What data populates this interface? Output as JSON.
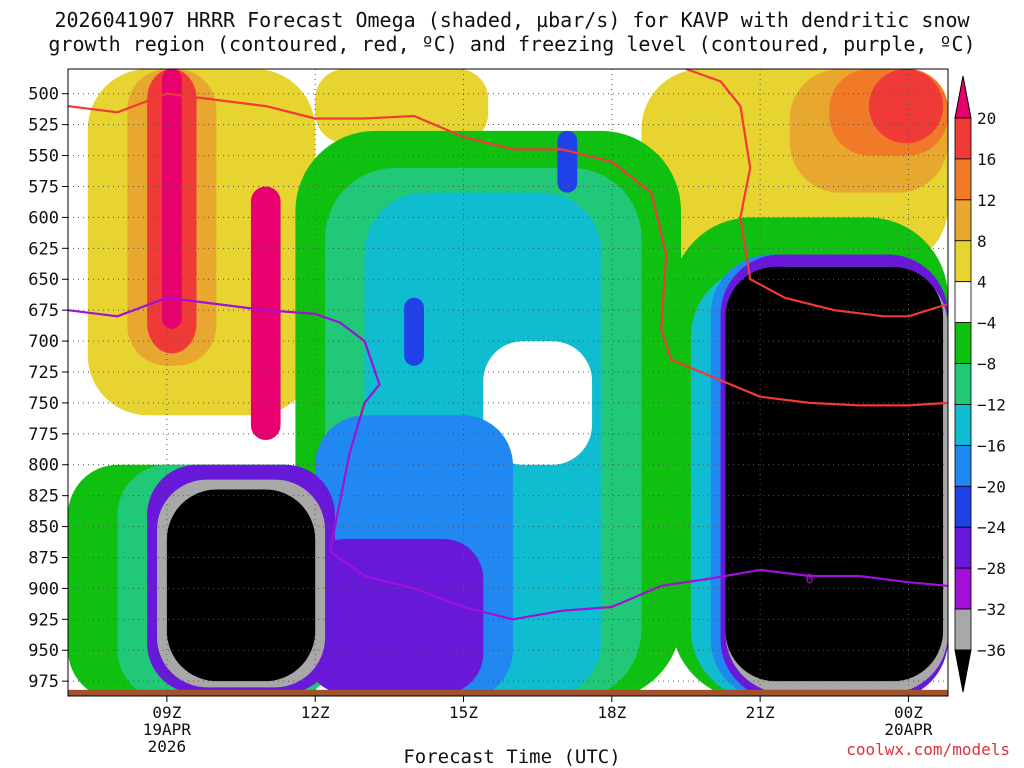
{
  "title": {
    "line1": "2026041907 HRRR Forecast Omega (shaded, µbar/s) for KAVP with dendritic snow",
    "line2": "growth region (contoured, red, ºC) and freezing level (contoured, purple, ºC)"
  },
  "credit": "coolwx.com/models",
  "chart_data": {
    "type": "heatmap",
    "title": "2026041907 HRRR Forecast Omega (shaded, µbar/s) for KAVP with dendritic snow growth region (contoured, red, ºC) and freezing level (contoured, purple, ºC)",
    "xlabel": "Forecast Time (UTC)",
    "ylabel": "",
    "xlim": [
      7.0,
      24.8
    ],
    "ylim": [
      480,
      987
    ],
    "y_inverted": true,
    "x_ticks": [
      {
        "value": 9,
        "lines": [
          "09Z",
          "19APR",
          "2026"
        ]
      },
      {
        "value": 12,
        "lines": [
          "12Z"
        ]
      },
      {
        "value": 15,
        "lines": [
          "15Z"
        ]
      },
      {
        "value": 18,
        "lines": [
          "18Z"
        ]
      },
      {
        "value": 21,
        "lines": [
          "21Z"
        ]
      },
      {
        "value": 24,
        "lines": [
          "00Z",
          "20APR"
        ]
      }
    ],
    "y_ticks": [
      500,
      525,
      550,
      575,
      600,
      625,
      650,
      675,
      700,
      725,
      750,
      775,
      800,
      825,
      850,
      875,
      900,
      925,
      950,
      975
    ],
    "colorbar": {
      "labels": [
        "20",
        "16",
        "12",
        "8",
        "4",
        "−4",
        "−8",
        "−12",
        "−16",
        "−20",
        "−24",
        "−28",
        "−32",
        "−36"
      ],
      "colors": [
        "#e8006f",
        "#f03a38",
        "#f07a28",
        "#e8a830",
        "#e8d430",
        "#ffffff",
        "#10c010",
        "#20c878",
        "#10bcd0",
        "#2088f0",
        "#2040e8",
        "#6818d8",
        "#a010d8",
        "#a8a8a8",
        "#000000"
      ],
      "bounds": [
        20,
        16,
        12,
        8,
        4,
        -4,
        -8,
        -12,
        -16,
        -20,
        -24,
        -28,
        -32,
        -36
      ]
    },
    "omega_regions": [
      {
        "name": "strong-rising-pocket-morning",
        "level": -36,
        "color": "#000000",
        "t": [
          9.0,
          12.0
        ],
        "p": [
          820,
          975
        ]
      },
      {
        "name": "strong-rising-pocket-evening",
        "level": -36,
        "color": "#000000",
        "t": [
          20.3,
          24.7
        ],
        "p": [
          640,
          975
        ]
      },
      {
        "name": "sinking-core-early",
        "level": 20,
        "color": "#e8006f",
        "t": [
          8.9,
          9.3
        ],
        "p": [
          480,
          690
        ]
      },
      {
        "name": "sinking-core-late-morning",
        "level": 20,
        "color": "#e8006f",
        "t": [
          10.7,
          11.3
        ],
        "p": [
          575,
          780
        ]
      },
      {
        "name": "sinking-core-evening",
        "level": 16,
        "color": "#f03a38",
        "t": [
          23.2,
          24.7
        ],
        "p": [
          480,
          540
        ]
      },
      {
        "name": "rising-core-1430",
        "level": -24,
        "color": "#2040e8",
        "t": [
          13.8,
          14.2
        ],
        "p": [
          665,
          720
        ]
      },
      {
        "name": "rising-core-1630",
        "level": -24,
        "color": "#2040e8",
        "t": [
          16.9,
          17.3
        ],
        "p": [
          530,
          580
        ]
      }
    ],
    "series": [
      {
        "name": "Dendritic snow growth region",
        "color": "#f03a38",
        "t": [
          7.0,
          8.0,
          9.0,
          10.0,
          11.0,
          12.0,
          13.0,
          14.0,
          15.0,
          16.0,
          17.0,
          18.0,
          18.8,
          19.1,
          19.0,
          19.2,
          19.8,
          21.0,
          22.0,
          23.0,
          24.0,
          24.8
        ],
        "p": [
          510,
          515,
          500,
          505,
          510,
          520,
          520,
          518,
          535,
          545,
          545,
          555,
          580,
          630,
          690,
          715,
          725,
          745,
          750,
          752,
          752,
          750
        ]
      },
      {
        "name": "Dendritic snow growth region (upper)",
        "color": "#f03a38",
        "t": [
          19.5,
          20.2,
          20.6,
          20.8,
          20.6,
          20.8,
          21.5,
          22.5,
          23.5,
          24.0,
          24.8
        ],
        "p": [
          480,
          490,
          510,
          560,
          600,
          650,
          665,
          675,
          680,
          680,
          670
        ]
      },
      {
        "name": "Freezing level",
        "color": "#a010d8",
        "t": [
          7.0,
          8.0,
          9.0,
          10.0,
          11.0,
          12.0,
          12.5,
          13.0,
          13.3,
          13.0,
          12.7,
          12.3,
          13.0,
          14.0,
          15.0,
          16.0,
          17.0,
          18.0,
          19.0,
          20.0,
          21.0,
          22.0,
          23.0,
          24.0,
          24.8
        ],
        "p": [
          675,
          680,
          665,
          670,
          675,
          678,
          685,
          700,
          735,
          750,
          790,
          870,
          890,
          900,
          915,
          925,
          918,
          915,
          898,
          892,
          885,
          890,
          890,
          895,
          898
        ]
      }
    ],
    "contour_labels": [
      {
        "text": "0",
        "t": 22.0,
        "p": 892,
        "color": "#a010d8"
      }
    ]
  }
}
